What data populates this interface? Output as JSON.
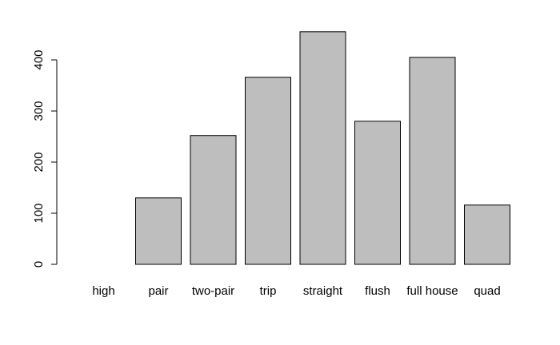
{
  "chart_data": {
    "type": "bar",
    "categories": [
      "high",
      "pair",
      "two-pair",
      "trip",
      "straight",
      "flush",
      "full house",
      "quad"
    ],
    "values": [
      0,
      130,
      252,
      366,
      455,
      280,
      405,
      116
    ],
    "title": "",
    "xlabel": "",
    "ylabel": "",
    "ylim": [
      0,
      455
    ],
    "yticks": [
      0,
      100,
      200,
      300,
      400
    ],
    "ytick_labels": [
      "0",
      "100",
      "200",
      "300",
      "400"
    ],
    "grid": false,
    "legend": "none",
    "bar_fill": "#bebebe",
    "bar_stroke": "#000000"
  }
}
